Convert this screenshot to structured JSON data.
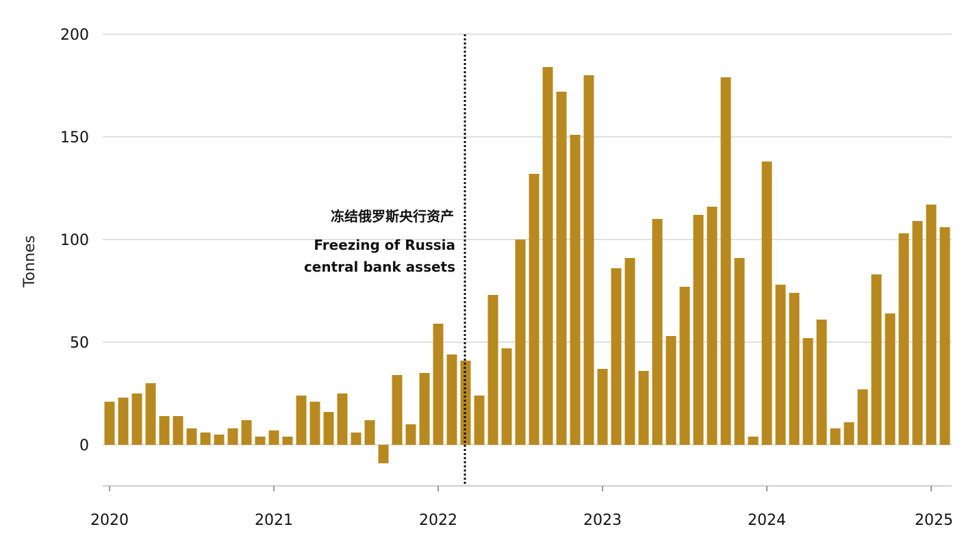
{
  "chart_data": {
    "type": "bar",
    "ylabel": "Tonnes",
    "xlabel": "",
    "title": "",
    "ylim": [
      -20,
      200
    ],
    "y_ticks": [
      "0",
      "50",
      "100",
      "150",
      "200"
    ],
    "x_ticks": [
      "2020",
      "2021",
      "2022",
      "2023",
      "2024",
      "2025"
    ],
    "grid": true,
    "bar_color": "#B8891F",
    "annotation": {
      "date": "2022-03",
      "lines": [
        "冻结俄罗斯央行资产",
        "Freezing of Russia",
        "central bank assets"
      ]
    },
    "categories": [
      "2020-01",
      "2020-02",
      "2020-03",
      "2020-04",
      "2020-05",
      "2020-06",
      "2020-07",
      "2020-08",
      "2020-09",
      "2020-10",
      "2020-11",
      "2020-12",
      "2021-01",
      "2021-02",
      "2021-03",
      "2021-04",
      "2021-05",
      "2021-06",
      "2021-07",
      "2021-08",
      "2021-09",
      "2021-10",
      "2021-11",
      "2021-12",
      "2022-01",
      "2022-02",
      "2022-03",
      "2022-04",
      "2022-05",
      "2022-06",
      "2022-07",
      "2022-08",
      "2022-09",
      "2022-10",
      "2022-11",
      "2022-12",
      "2023-01",
      "2023-02",
      "2023-03",
      "2023-04",
      "2023-05",
      "2023-06",
      "2023-07",
      "2023-08",
      "2023-09",
      "2023-10",
      "2023-11",
      "2023-12",
      "2024-01",
      "2024-02",
      "2024-03",
      "2024-04",
      "2024-05",
      "2024-06",
      "2024-07",
      "2024-08",
      "2024-09",
      "2024-10",
      "2024-11",
      "2024-12",
      "2025-01",
      "2025-02"
    ],
    "values": [
      21,
      23,
      25,
      30,
      14,
      14,
      8,
      6,
      5,
      8,
      12,
      4,
      7,
      4,
      24,
      21,
      16,
      25,
      6,
      12,
      -9,
      34,
      10,
      35,
      59,
      44,
      41,
      24,
      73,
      47,
      100,
      132,
      184,
      172,
      151,
      180,
      37,
      86,
      91,
      36,
      110,
      53,
      77,
      112,
      116,
      179,
      91,
      4,
      138,
      78,
      74,
      52,
      61,
      8,
      11,
      27,
      83,
      64,
      103,
      109,
      117,
      106
    ]
  }
}
